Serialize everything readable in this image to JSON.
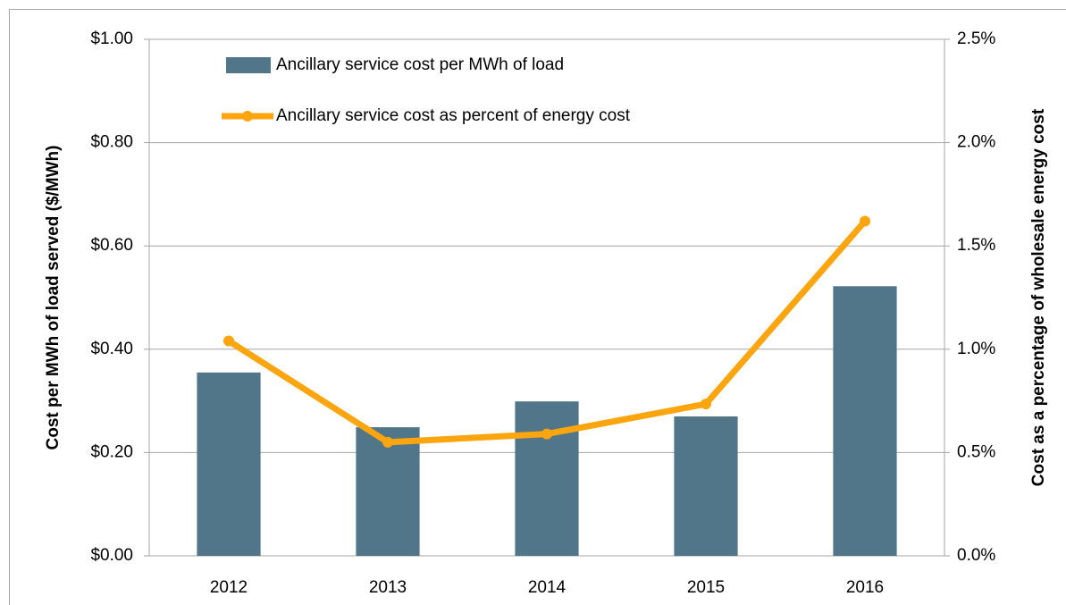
{
  "chart_data": {
    "type": "bar_line",
    "categories": [
      "2012",
      "2013",
      "2014",
      "2015",
      "2016"
    ],
    "series": [
      {
        "name": "Ancillary service cost per MWh of load",
        "type": "bar",
        "color": "#517589",
        "values": [
          0.355,
          0.249,
          0.299,
          0.27,
          0.522
        ]
      },
      {
        "name": "Ancillary service cost as percent of energy cost",
        "type": "line",
        "axis": "y2",
        "color": "#fca50f",
        "values": [
          1.04,
          0.55,
          0.59,
          0.735,
          1.62
        ]
      }
    ],
    "ylabel": "Cost per MWh of load served ($/MWh)",
    "y2label": "Cost as a percentage of wholesale energy cost",
    "ylim": [
      0,
      1
    ],
    "yticks": [
      {
        "value": 0,
        "label": "$0.00"
      },
      {
        "value": 0.2,
        "label": "$0.20"
      },
      {
        "value": 0.4,
        "label": "$0.40"
      },
      {
        "value": 0.6,
        "label": "$0.60"
      },
      {
        "value": 0.8,
        "label": "$0.80"
      },
      {
        "value": 1,
        "label": "$1.00"
      }
    ],
    "y2lim": [
      0,
      2.5
    ],
    "y2ticks": [
      {
        "value": 0,
        "label": "0.0%"
      },
      {
        "value": 0.5,
        "label": "0.5%"
      },
      {
        "value": 1,
        "label": "1.0%"
      },
      {
        "value": 1.5,
        "label": "1.5%"
      },
      {
        "value": 2,
        "label": "2.0%"
      },
      {
        "value": 2.5,
        "label": "2.5%"
      }
    ],
    "grid": true,
    "legend": "top-left"
  }
}
